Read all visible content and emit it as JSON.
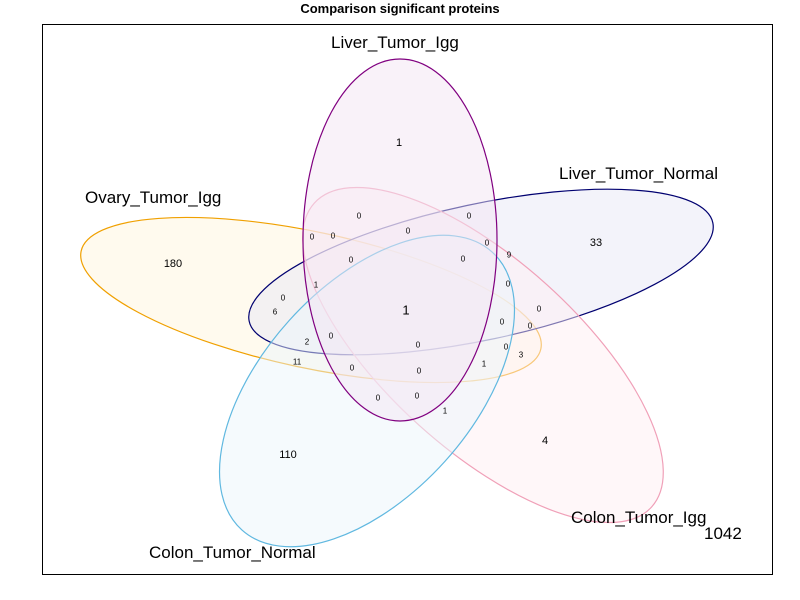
{
  "title": "Comparison significant proteins",
  "sets": [
    {
      "key": "ovary",
      "label": "Ovary_Tumor_Igg",
      "stroke": "#f0a000",
      "fill": "#fff5e0"
    },
    {
      "key": "liver_igg",
      "label": "Liver_Tumor_Igg",
      "stroke": "#800080",
      "fill": "#f4e6f4"
    },
    {
      "key": "liver_normal",
      "label": "Liver_Tumor_Normal",
      "stroke": "#000070",
      "fill": "#e9e9f5"
    },
    {
      "key": "colon_igg",
      "label": "Colon_Tumor_Igg",
      "stroke": "#f0a0b8",
      "fill": "#fff0f3"
    },
    {
      "key": "colon_normal",
      "label": "Colon_Tumor_Normal",
      "stroke": "#60b8e0",
      "fill": "#ecf6fc"
    }
  ],
  "outside_count": "1042",
  "counts": {
    "ovary_only": "180",
    "liver_igg_only": "1",
    "liver_normal_only": "33",
    "colon_igg_only": "4",
    "colon_normal_only": "110",
    "all_five": "1",
    "r01": "0",
    "r02": "0",
    "r03": "0",
    "r04": "0",
    "r05": "0",
    "r06": "0",
    "r07": "0",
    "r08": "0",
    "r09": "9",
    "r10": "0",
    "r11": "0",
    "r12": "0",
    "r13": "0",
    "r14": "0",
    "r15": "3",
    "r16": "1",
    "r17": "1",
    "r18": "0",
    "r19": "0",
    "r20": "0",
    "r21": "0",
    "r22": "0",
    "r23": "0",
    "r24": "1",
    "r25": "6",
    "r26": "2",
    "r27": "11",
    "r28": "0"
  }
}
